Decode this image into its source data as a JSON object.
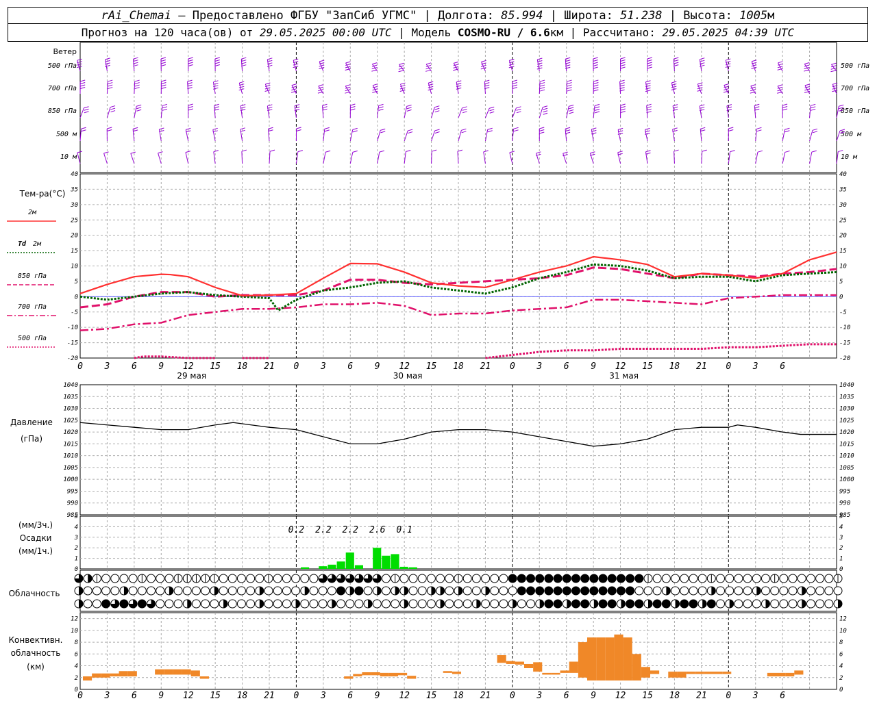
{
  "header": {
    "station": "rAi_Chemai",
    "sep1": " — ",
    "provider": "Предоставлено ФГБУ \"ЗапСиб УГМС\"",
    "lon_label": "Долгота:",
    "lon_value": "85.994",
    "lat_label": "Широта:",
    "lat_value": "51.238",
    "alt_label": "Высота:",
    "alt_value": "1005",
    "alt_unit": "м",
    "forecast_prefix": "Прогноз на 120 часа(ов) от",
    "forecast_time": "29.05.2025 00:00 UTC",
    "model_label": "Модель",
    "model_name": "COSMO-RU / 6.6",
    "model_unit": "км",
    "calc_label": "Рассчитано:",
    "calc_time": "29.05.2025 04:39 UTC"
  },
  "time_axis": {
    "hour_labels": [
      "0",
      "3",
      "6",
      "9",
      "12",
      "15",
      "18",
      "21",
      "0",
      "3",
      "6",
      "9",
      "12",
      "15",
      "18",
      "21",
      "0",
      "3",
      "6",
      "9",
      "12",
      "15",
      "18",
      "21",
      "0",
      "3",
      "6"
    ],
    "day_labels": [
      "29 мая",
      "30 мая",
      "31 мая"
    ]
  },
  "wind_panel": {
    "title": "Ветер",
    "levels": [
      "500 гПа",
      "700 гПа",
      "850 гПа",
      "500 м",
      "10  м"
    ],
    "color": "#9400d3"
  },
  "temp_panel": {
    "title": "Тем-ра(°C)",
    "legend": [
      {
        "label": "2м",
        "color": "#ff3030",
        "style": "solid"
      },
      {
        "label_italic": "Td",
        "label": "2м",
        "color": "#006400",
        "style": "dotted"
      },
      {
        "label": "850 гПа",
        "color": "#e0106a",
        "style": "dashed"
      },
      {
        "label": "700 гПа",
        "color": "#e0106a",
        "style": "dashdot"
      },
      {
        "label": "500 гПа",
        "color": "#e0106a",
        "style": "dotted"
      }
    ],
    "y_ticks": [
      "40",
      "35",
      "30",
      "25",
      "20",
      "15",
      "10",
      "5",
      "0",
      "-5",
      "-10",
      "-15",
      "-20"
    ]
  },
  "pressure_panel": {
    "title": "Давление",
    "unit": "(гПа)",
    "y_ticks": [
      "1040",
      "1035",
      "1030",
      "1025",
      "1020",
      "1015",
      "1010",
      "1005",
      "1000",
      "995",
      "990",
      "985"
    ]
  },
  "precip_panel": {
    "unit_top": "(мм/3ч.)",
    "title": "Осадки",
    "unit_bottom": "(мм/1ч.)",
    "y_ticks": [
      "5",
      "4",
      "3",
      "2",
      "1",
      "0"
    ],
    "totals": [
      {
        "h": 24,
        "v": "0.2"
      },
      {
        "h": 27,
        "v": "2.2"
      },
      {
        "h": 30,
        "v": "2.2"
      },
      {
        "h": 33,
        "v": "2.6"
      },
      {
        "h": 36,
        "v": "0.1"
      }
    ],
    "color": "#00dd00"
  },
  "cloud_panel": {
    "title": "Облачность"
  },
  "conv_panel": {
    "title1": "Конвективн.",
    "title2": "облачность",
    "unit": "(км)",
    "y_ticks": [
      "12",
      "10",
      "8",
      "6",
      "4",
      "2",
      "0"
    ],
    "color": "#f08828"
  },
  "chart_data": {
    "type": "line",
    "x": "hours from 29.05.2025 00:00 UTC, hourly",
    "temperature": {
      "ylim": [
        -20,
        40
      ],
      "t2m": [
        [
          0,
          1
        ],
        [
          3,
          4
        ],
        [
          6,
          6.5
        ],
        [
          9,
          7.3
        ],
        [
          10,
          7.2
        ],
        [
          12,
          6.5
        ],
        [
          15,
          3
        ],
        [
          18,
          0.3
        ],
        [
          21,
          0.5
        ],
        [
          24,
          1
        ],
        [
          27,
          6
        ],
        [
          30,
          10.8
        ],
        [
          33,
          10.7
        ],
        [
          36,
          8
        ],
        [
          39,
          4.5
        ],
        [
          42,
          3.5
        ],
        [
          45,
          3
        ],
        [
          48,
          5.5
        ],
        [
          51,
          8
        ],
        [
          54,
          10
        ],
        [
          57,
          13
        ],
        [
          60,
          12
        ],
        [
          63,
          10.5
        ],
        [
          66,
          6.5
        ],
        [
          69,
          7.5
        ],
        [
          72,
          7
        ],
        [
          75,
          6
        ],
        [
          78,
          7.5
        ],
        [
          81,
          12
        ],
        [
          84,
          14.5
        ]
      ],
      "td2m": [
        [
          0,
          0
        ],
        [
          3,
          -1
        ],
        [
          6,
          0
        ],
        [
          9,
          1
        ],
        [
          12,
          1.5
        ],
        [
          15,
          0.5
        ],
        [
          18,
          0
        ],
        [
          21,
          -0.5
        ],
        [
          22,
          -4.5
        ],
        [
          24,
          -1
        ],
        [
          27,
          2
        ],
        [
          30,
          3
        ],
        [
          33,
          4.5
        ],
        [
          36,
          5
        ],
        [
          39,
          3
        ],
        [
          42,
          2
        ],
        [
          45,
          1
        ],
        [
          48,
          3
        ],
        [
          51,
          6
        ],
        [
          54,
          8
        ],
        [
          57,
          10.5
        ],
        [
          60,
          10
        ],
        [
          63,
          8.5
        ],
        [
          66,
          6
        ],
        [
          69,
          6.5
        ],
        [
          72,
          6.5
        ],
        [
          75,
          5
        ],
        [
          78,
          7
        ],
        [
          81,
          7.5
        ],
        [
          84,
          8
        ]
      ],
      "t850": [
        [
          0,
          -3.5
        ],
        [
          3,
          -2.5
        ],
        [
          6,
          0
        ],
        [
          9,
          1.5
        ],
        [
          12,
          1.5
        ],
        [
          15,
          0
        ],
        [
          18,
          0.5
        ],
        [
          21,
          0.5
        ],
        [
          24,
          0.5
        ],
        [
          27,
          2
        ],
        [
          30,
          5.5
        ],
        [
          33,
          5.5
        ],
        [
          36,
          4.5
        ],
        [
          39,
          4
        ],
        [
          42,
          4.5
        ],
        [
          45,
          5
        ],
        [
          48,
          5.5
        ],
        [
          51,
          6
        ],
        [
          54,
          7
        ],
        [
          57,
          9.5
        ],
        [
          60,
          9
        ],
        [
          63,
          7.5
        ],
        [
          66,
          6
        ],
        [
          69,
          7.5
        ],
        [
          72,
          7
        ],
        [
          75,
          6.5
        ],
        [
          78,
          7.5
        ],
        [
          81,
          8
        ],
        [
          84,
          9
        ]
      ],
      "t700": [
        [
          0,
          -11
        ],
        [
          3,
          -10.5
        ],
        [
          6,
          -9
        ],
        [
          9,
          -8.5
        ],
        [
          12,
          -6
        ],
        [
          15,
          -5
        ],
        [
          18,
          -4
        ],
        [
          21,
          -4
        ],
        [
          24,
          -3.5
        ],
        [
          27,
          -2.5
        ],
        [
          30,
          -2.5
        ],
        [
          33,
          -2
        ],
        [
          36,
          -3
        ],
        [
          39,
          -6
        ],
        [
          42,
          -5.5
        ],
        [
          45,
          -5.5
        ],
        [
          48,
          -4.5
        ],
        [
          51,
          -4
        ],
        [
          54,
          -3.5
        ],
        [
          57,
          -1
        ],
        [
          60,
          -1
        ],
        [
          63,
          -1.5
        ],
        [
          66,
          -2
        ],
        [
          69,
          -2.5
        ],
        [
          72,
          -0.5
        ],
        [
          75,
          0
        ],
        [
          78,
          0.5
        ],
        [
          81,
          0.5
        ],
        [
          84,
          0.5
        ]
      ],
      "t500_segments": [
        [
          [
            6,
            -20
          ],
          [
            7,
            -19.5
          ],
          [
            9,
            -19.5
          ],
          [
            12,
            -20
          ],
          [
            15,
            -20
          ]
        ],
        [
          [
            18,
            -20
          ],
          [
            21,
            -20
          ]
        ],
        [
          [
            45,
            -20
          ],
          [
            48,
            -19
          ],
          [
            51,
            -18
          ],
          [
            54,
            -17.5
          ],
          [
            57,
            -17.5
          ],
          [
            60,
            -17
          ],
          [
            63,
            -17
          ],
          [
            66,
            -17
          ],
          [
            69,
            -17
          ],
          [
            72,
            -16.5
          ],
          [
            75,
            -16.5
          ],
          [
            78,
            -16
          ],
          [
            81,
            -15.5
          ],
          [
            84,
            -15.5
          ]
        ]
      ]
    },
    "pressure": {
      "ylim": [
        985,
        1040
      ],
      "values": [
        [
          0,
          1024
        ],
        [
          3,
          1023
        ],
        [
          6,
          1022
        ],
        [
          9,
          1021
        ],
        [
          12,
          1021
        ],
        [
          15,
          1023
        ],
        [
          17,
          1024
        ],
        [
          19,
          1023
        ],
        [
          21,
          1022
        ],
        [
          24,
          1021
        ],
        [
          27,
          1018
        ],
        [
          30,
          1015
        ],
        [
          33,
          1015
        ],
        [
          36,
          1017
        ],
        [
          39,
          1020
        ],
        [
          42,
          1021
        ],
        [
          45,
          1021
        ],
        [
          48,
          1020
        ],
        [
          51,
          1018
        ],
        [
          54,
          1016
        ],
        [
          57,
          1014
        ],
        [
          60,
          1015
        ],
        [
          63,
          1017
        ],
        [
          66,
          1021
        ],
        [
          69,
          1022
        ],
        [
          72,
          1022
        ],
        [
          73,
          1023
        ],
        [
          75,
          1022
        ],
        [
          78,
          1020
        ],
        [
          80,
          1019
        ],
        [
          84,
          1019
        ]
      ]
    },
    "precip_mm_per_h": {
      "ylim": [
        0,
        5
      ],
      "values": [
        [
          25,
          0.15
        ],
        [
          27,
          0.25
        ],
        [
          28,
          0.4
        ],
        [
          29,
          0.7
        ],
        [
          30,
          1.55
        ],
        [
          31,
          0.35
        ],
        [
          33,
          2.0
        ],
        [
          34,
          1.25
        ],
        [
          35,
          1.4
        ],
        [
          36,
          0.2
        ],
        [
          37,
          0.15
        ]
      ]
    },
    "cloud_cover_eighths": {
      "rows": 3,
      "note": "0=clear, 8=overcast, per hour"
    },
    "convective_cloud_km": {
      "ylim": [
        0,
        13
      ],
      "bars": [
        [
          0,
          1.5,
          2.2
        ],
        [
          1,
          2,
          2.7
        ],
        [
          2,
          2,
          2.7
        ],
        [
          3,
          2.2,
          2.7
        ],
        [
          4,
          2.2,
          3.1
        ],
        [
          5,
          2.2,
          3.1
        ],
        [
          8,
          2.5,
          3.4
        ],
        [
          9,
          2.5,
          3.4
        ],
        [
          10,
          2.5,
          3.4
        ],
        [
          11,
          2.5,
          3.4
        ],
        [
          12,
          2.2,
          3.2
        ],
        [
          13,
          1.8,
          2.2
        ],
        [
          29,
          1.8,
          2.2
        ],
        [
          30,
          2.2,
          2.6
        ],
        [
          31,
          2.4,
          2.9
        ],
        [
          32,
          2.4,
          2.9
        ],
        [
          33,
          2.2,
          2.8
        ],
        [
          34,
          2.2,
          2.8
        ],
        [
          35,
          2.4,
          2.8
        ],
        [
          36,
          1.8,
          2.3
        ],
        [
          40,
          2.8,
          3.1
        ],
        [
          41,
          2.6,
          3.0
        ],
        [
          46,
          4.5,
          5.8
        ],
        [
          47,
          4.3,
          4.8
        ],
        [
          48,
          4.2,
          4.7
        ],
        [
          49,
          3.6,
          4.3
        ],
        [
          50,
          3.0,
          4.6
        ],
        [
          51,
          2.5,
          2.8
        ],
        [
          52,
          2.5,
          2.8
        ],
        [
          53,
          2.8,
          3.2
        ],
        [
          54,
          2.8,
          4.7
        ],
        [
          55,
          2.0,
          8.0
        ],
        [
          56,
          1.5,
          8.8
        ],
        [
          57,
          1.5,
          8.8
        ],
        [
          58,
          1.5,
          8.8
        ],
        [
          59,
          1.5,
          9.3
        ],
        [
          60,
          1.5,
          8.8
        ],
        [
          61,
          1.5,
          6.0
        ],
        [
          62,
          2.0,
          3.8
        ],
        [
          63,
          2.6,
          3.2
        ],
        [
          65,
          2.0,
          3.0
        ],
        [
          66,
          2.0,
          3.0
        ],
        [
          67,
          2.6,
          3.0
        ],
        [
          68,
          2.6,
          3.0
        ],
        [
          69,
          2.6,
          3.0
        ],
        [
          70,
          2.6,
          3.0
        ],
        [
          71,
          2.6,
          3.0
        ],
        [
          76,
          2.2,
          2.8
        ],
        [
          77,
          2.2,
          2.8
        ],
        [
          78,
          2.2,
          2.8
        ],
        [
          79,
          2.5,
          3.2
        ]
      ]
    }
  }
}
